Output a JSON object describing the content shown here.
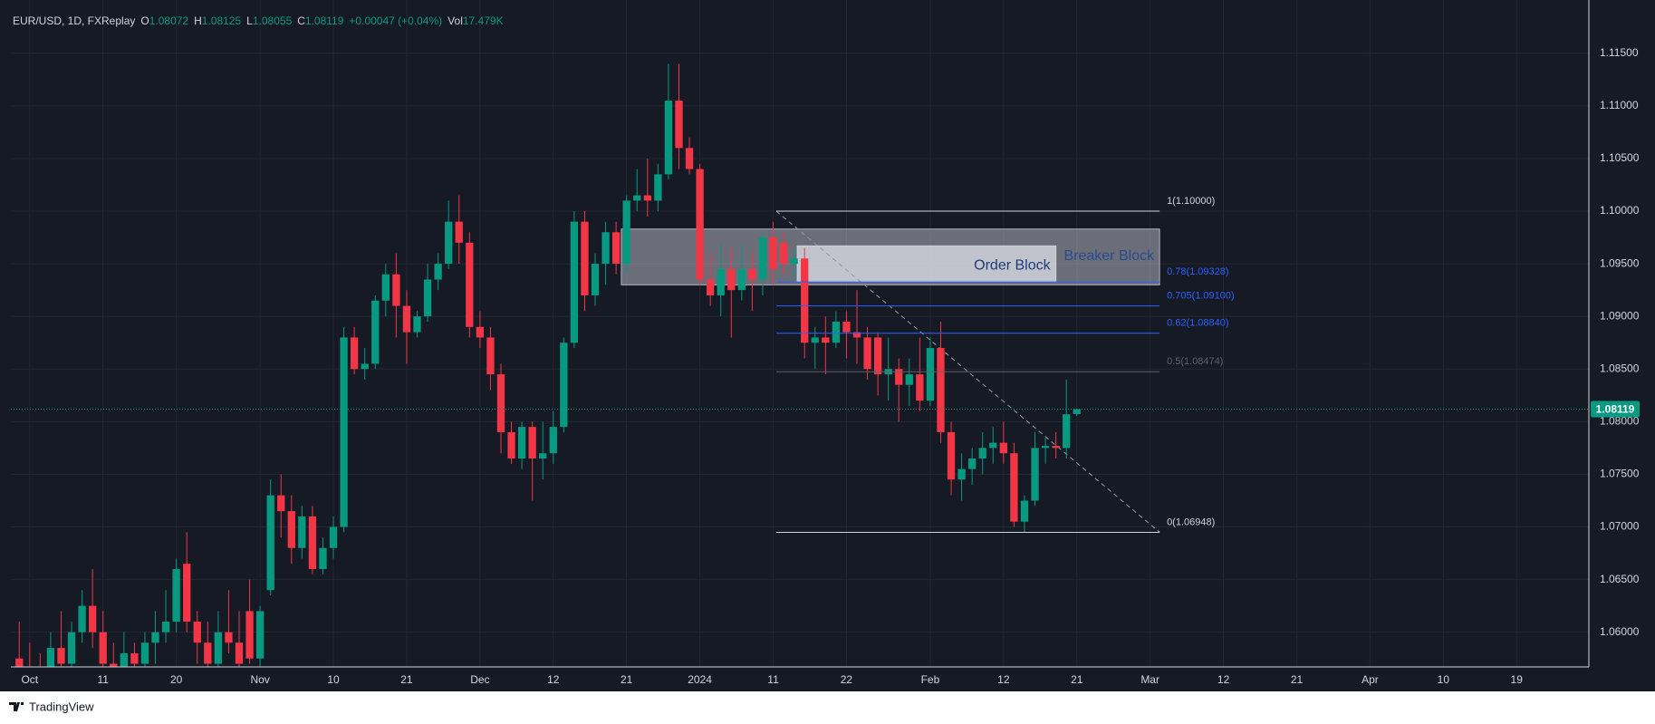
{
  "chart_data": {
    "type": "candlestick",
    "legend": {
      "symbol": "EUR/USD, 1D, FXReplay",
      "items": [
        {
          "key": "O",
          "value": "1.08072"
        },
        {
          "key": "H",
          "value": "1.08125"
        },
        {
          "key": "L",
          "value": "1.08055"
        },
        {
          "key": "C",
          "value": "1.08119"
        }
      ],
      "change": "+0.00047 (+0.04%)",
      "volume_key": "Vol",
      "volume": "17.479K"
    },
    "open": [
      1.0575,
      1.0565,
      1.056,
      1.055,
      1.0585,
      1.057,
      1.06,
      1.0625,
      1.06,
      1.057,
      1.056,
      1.058,
      1.057,
      1.059,
      1.06,
      1.061,
      1.0665,
      1.061,
      1.059,
      1.057,
      1.06,
      1.059,
      1.062,
      1.0575,
      1.064,
      1.073,
      1.0715,
      1.068,
      1.071,
      1.066,
      1.068,
      1.07,
      1.088,
      1.085,
      1.0855,
      1.0915,
      1.094,
      1.091,
      1.0885,
      1.09,
      1.0935,
      1.095,
      1.099,
      1.097,
      1.089,
      1.088,
      1.0845,
      1.079,
      1.0765,
      1.0795,
      1.0765,
      1.077,
      1.0795,
      1.0875,
      1.099,
      1.092,
      1.095,
      1.098,
      1.095,
      1.101,
      1.1015,
      1.101,
      1.1035,
      1.1105,
      1.106,
      1.104,
      1.0935,
      1.092,
      1.0945,
      1.0925,
      1.0945,
      1.0935,
      1.0975,
      1.097,
      1.095,
      1.0955,
      1.0875,
      1.088,
      1.0875,
      1.0895,
      1.0885,
      1.088,
      1.088,
      1.0845,
      1.085,
      1.0835,
      1.0845,
      1.082,
      1.087,
      1.079,
      1.0745,
      1.0755,
      1.0765,
      1.0775,
      1.078,
      1.077,
      1.0705,
      1.0725,
      1.0775,
      1.0777,
      1.0775,
      1.08072
    ],
    "high": [
      1.061,
      1.059,
      1.058,
      1.06,
      1.062,
      1.061,
      1.064,
      1.066,
      1.062,
      1.059,
      1.06,
      1.059,
      1.06,
      1.062,
      1.064,
      1.067,
      1.0695,
      1.062,
      1.061,
      1.062,
      1.064,
      1.062,
      1.065,
      1.0625,
      1.0745,
      1.075,
      1.073,
      1.072,
      1.072,
      1.069,
      1.071,
      1.089,
      1.089,
      1.087,
      1.092,
      1.095,
      1.096,
      1.0925,
      1.0905,
      1.095,
      1.096,
      1.101,
      1.1015,
      1.098,
      1.0905,
      1.089,
      1.0855,
      1.08,
      1.08,
      1.08,
      1.08,
      1.081,
      1.088,
      1.1,
      1.1,
      1.096,
      1.099,
      1.099,
      1.1015,
      1.104,
      1.105,
      1.1045,
      1.114,
      1.114,
      1.107,
      1.1045,
      1.096,
      1.097,
      1.0965,
      1.097,
      1.096,
      1.098,
      1.099,
      1.098,
      1.0965,
      1.0965,
      1.089,
      1.09,
      1.0905,
      1.0905,
      1.0925,
      1.089,
      1.0885,
      1.088,
      1.086,
      1.086,
      1.088,
      1.088,
      1.0895,
      1.08,
      1.077,
      1.0775,
      1.079,
      1.0795,
      1.08,
      1.078,
      1.073,
      1.079,
      1.0785,
      1.079,
      1.084,
      1.08125
    ],
    "low": [
      1.056,
      1.055,
      1.054,
      1.054,
      1.056,
      1.056,
      1.059,
      1.0585,
      1.056,
      1.055,
      1.0555,
      1.056,
      1.056,
      1.057,
      1.059,
      1.06,
      1.06,
      1.057,
      1.056,
      1.056,
      1.058,
      1.056,
      1.057,
      1.0565,
      1.0635,
      1.069,
      1.0665,
      1.067,
      1.0655,
      1.0655,
      1.067,
      1.0695,
      1.0845,
      1.084,
      1.085,
      1.09,
      1.088,
      1.0855,
      1.088,
      1.0895,
      1.0925,
      1.0945,
      1.095,
      1.088,
      1.087,
      1.083,
      1.077,
      1.076,
      1.0755,
      1.0725,
      1.0745,
      1.076,
      1.079,
      1.087,
      1.0905,
      1.091,
      1.093,
      1.094,
      1.094,
      1.1,
      1.0995,
      1.1,
      1.103,
      1.104,
      1.1035,
      1.093,
      1.091,
      1.09,
      1.088,
      1.0915,
      1.0905,
      1.092,
      1.093,
      1.094,
      1.0935,
      1.086,
      1.085,
      1.0845,
      1.087,
      1.086,
      1.0855,
      1.084,
      1.0825,
      1.082,
      1.08,
      1.0815,
      1.081,
      1.0815,
      1.078,
      1.073,
      1.0725,
      1.074,
      1.075,
      1.076,
      1.076,
      1.07,
      1.0695,
      1.072,
      1.076,
      1.0765,
      1.0765,
      1.08055
    ],
    "close": [
      1.0565,
      1.056,
      1.055,
      1.0585,
      1.057,
      1.06,
      1.0625,
      1.06,
      1.057,
      1.056,
      1.058,
      1.057,
      1.059,
      1.06,
      1.061,
      1.066,
      1.061,
      1.059,
      1.057,
      1.06,
      1.059,
      1.057,
      1.0575,
      1.062,
      1.073,
      1.0715,
      1.068,
      1.071,
      1.066,
      1.068,
      1.07,
      1.088,
      1.085,
      1.0855,
      1.0915,
      1.094,
      1.091,
      1.0885,
      1.09,
      1.0935,
      1.095,
      1.099,
      1.097,
      1.089,
      1.088,
      1.0845,
      1.079,
      1.0765,
      1.0795,
      1.0765,
      1.077,
      1.0795,
      1.0875,
      1.099,
      1.092,
      1.095,
      1.098,
      1.095,
      1.101,
      1.1015,
      1.101,
      1.1035,
      1.1105,
      1.106,
      1.104,
      1.0935,
      1.092,
      1.0945,
      1.0925,
      1.0945,
      1.0935,
      1.0975,
      1.0945,
      1.095,
      1.0955,
      1.0875,
      1.088,
      1.0875,
      1.0895,
      1.0885,
      1.088,
      1.085,
      1.0845,
      1.085,
      1.0835,
      1.0845,
      1.082,
      1.087,
      1.079,
      1.0745,
      1.0755,
      1.0765,
      1.0775,
      1.078,
      1.077,
      1.0705,
      1.0725,
      1.0775,
      1.0777,
      1.0775,
      1.0807,
      1.08119
    ],
    "up_color": "#089981",
    "down_color": "#f23645",
    "xlim": [
      -0.8,
      149.9
    ],
    "ylim": [
      1.0567,
      1.1192
    ],
    "xticks": [
      {
        "value": 1,
        "label": "Oct"
      },
      {
        "value": 8,
        "label": "11"
      },
      {
        "value": 15,
        "label": "20"
      },
      {
        "value": 23,
        "label": "Nov"
      },
      {
        "value": 30,
        "label": "10"
      },
      {
        "value": 37,
        "label": "21"
      },
      {
        "value": 44,
        "label": "Dec"
      },
      {
        "value": 51,
        "label": "12"
      },
      {
        "value": 58,
        "label": "21"
      },
      {
        "value": 65,
        "label": "2024"
      },
      {
        "value": 72,
        "label": "11"
      },
      {
        "value": 79,
        "label": "22"
      },
      {
        "value": 87,
        "label": "Feb"
      },
      {
        "value": 94,
        "label": "12"
      },
      {
        "value": 101,
        "label": "21"
      },
      {
        "value": 108,
        "label": "Mar"
      },
      {
        "value": 115,
        "label": "12"
      },
      {
        "value": 122,
        "label": "21"
      },
      {
        "value": 129,
        "label": "Apr"
      },
      {
        "value": 136,
        "label": "10"
      },
      {
        "value": 143,
        "label": "19"
      }
    ],
    "yticks": [
      {
        "value": 1.06,
        "label": "1.06000"
      },
      {
        "value": 1.065,
        "label": "1.06500"
      },
      {
        "value": 1.07,
        "label": "1.07000"
      },
      {
        "value": 1.075,
        "label": "1.07500"
      },
      {
        "value": 1.08,
        "label": "1.08000"
      },
      {
        "value": 1.085,
        "label": "1.08500"
      },
      {
        "value": 1.09,
        "label": "1.09000"
      },
      {
        "value": 1.095,
        "label": "1.09500"
      },
      {
        "value": 1.1,
        "label": "1.10000"
      },
      {
        "value": 1.105,
        "label": "1.10500"
      },
      {
        "value": 1.11,
        "label": "1.11000"
      },
      {
        "value": 1.115,
        "label": "1.11500"
      }
    ],
    "grid": true,
    "last_price": {
      "value": 1.08119,
      "label": "1.08119",
      "color": "#089981"
    },
    "fib": {
      "x": [
        72.3,
        108.9
      ],
      "levels": [
        {
          "level": 1,
          "price": 1.1,
          "label": "1(1.10000)",
          "color": "#d1d4dc"
        },
        {
          "level": 0.78,
          "price": 1.09328,
          "label": "0.78(1.09328)",
          "color": "#2962ff"
        },
        {
          "level": 0.705,
          "price": 1.091,
          "label": "0.705(1.09100)",
          "color": "#2962ff"
        },
        {
          "level": 0.62,
          "price": 1.0884,
          "label": "0.62(1.08840)",
          "color": "#2962ff"
        },
        {
          "level": 0.5,
          "price": 1.08474,
          "label": "0.5(1.08474)",
          "color": "#5d606b"
        },
        {
          "level": 0,
          "price": 1.06948,
          "label": "0(1.06948)",
          "color": "#d1d4dc"
        }
      ]
    },
    "zones": [
      {
        "label": "Breaker Block",
        "x": [
          57.5,
          108.9
        ],
        "y": [
          1.093,
          1.0983
        ],
        "color": "#b2b5be",
        "text_color": "#2a4a8f"
      },
      {
        "label": "Order Block",
        "x": [
          74.3,
          99.0
        ],
        "y": [
          1.0933,
          1.0967
        ],
        "color": "#d1d4dc",
        "text_color": "#1e3c7a"
      }
    ],
    "trendline": {
      "x": [
        72.3,
        108.9
      ],
      "y": [
        1.1,
        1.0695
      ],
      "color": "#9598a1"
    }
  },
  "footer": {
    "brand": "TradingView"
  }
}
